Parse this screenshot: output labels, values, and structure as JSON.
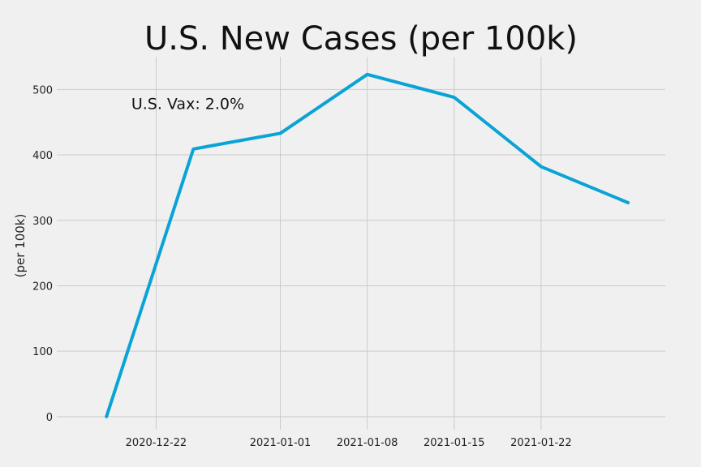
{
  "chart_data": {
    "type": "line",
    "title": "U.S. New Cases (per 100k)",
    "xlabel": "",
    "ylabel": "(per 100k)",
    "x": [
      "2020-12-18",
      "2020-12-25",
      "2021-01-01",
      "2021-01-08",
      "2021-01-15",
      "2021-01-22",
      "2021-01-29"
    ],
    "series": [
      {
        "values": [
          0,
          409,
          433,
          523,
          488,
          382,
          327
        ],
        "color": "#0aa3d6"
      }
    ],
    "xticks": [
      "2020-12-22",
      "2021-01-01",
      "2021-01-08",
      "2021-01-15",
      "2021-01-22"
    ],
    "xlim": [
      "2020-12-14",
      "2021-02-01"
    ],
    "yticks": [
      0,
      100,
      200,
      300,
      400,
      500
    ],
    "ylim": [
      -20,
      550
    ],
    "annotations": [
      {
        "text": "U.S. Vax: 2.0%",
        "x": "2020-12-20",
        "y": 470
      }
    ],
    "grid": true,
    "legend": "none"
  }
}
